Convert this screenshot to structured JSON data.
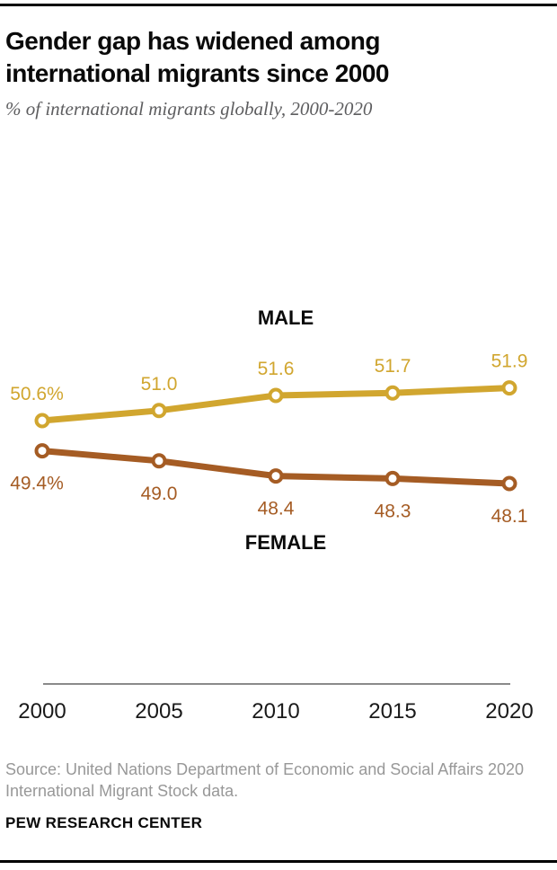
{
  "header": {
    "title": "Gender gap has widened among international migrants since 2000",
    "subtitle": "% of international migrants globally, 2000-2020"
  },
  "chart_data": {
    "type": "line",
    "x": [
      2000,
      2005,
      2010,
      2015,
      2020
    ],
    "x_tick_labels": [
      "2000",
      "2005",
      "2010",
      "2015",
      "2020"
    ],
    "series": [
      {
        "name": "MALE",
        "values": [
          50.6,
          51.0,
          51.6,
          51.7,
          51.9
        ],
        "point_labels": [
          "50.6%",
          "51.0",
          "51.6",
          "51.7",
          "51.9"
        ],
        "color": "#d1a62f",
        "label_position": "above"
      },
      {
        "name": "FEMALE",
        "values": [
          49.4,
          49.0,
          48.4,
          48.3,
          48.1
        ],
        "point_labels": [
          "49.4%",
          "49.0",
          "48.4",
          "48.3",
          "48.1"
        ],
        "color": "#a55c24",
        "label_position": "below"
      }
    ],
    "ylim": [
      47.0,
      53.0
    ],
    "grid": false,
    "legend_position": "inline-above-below-lines",
    "axis_color": "#8a8a8a",
    "tick_label_color": "#1a1a1a",
    "marker_style": "open-circle"
  },
  "footer": {
    "source": "Source: United Nations Department of Economic and Social Affairs 2020 International Migrant Stock data.",
    "brand": "PEW RESEARCH CENTER"
  }
}
